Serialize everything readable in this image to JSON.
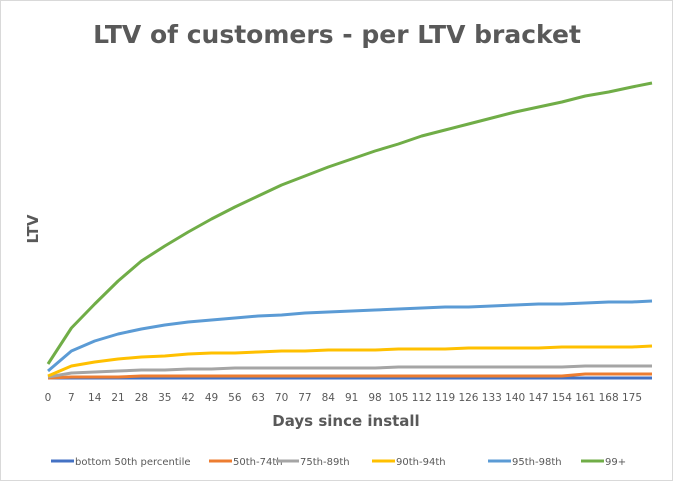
{
  "chart_data": {
    "type": "line",
    "title": "LTV of customers - per LTV bracket",
    "xlabel": "Days since install",
    "ylabel": "LTV",
    "y_tick_labels_shown": false,
    "ylim": [
      0,
      320
    ],
    "xlim": [
      0,
      181
    ],
    "grid": false,
    "legend_position": "bottom",
    "x_tick_labels": [
      "0",
      "7",
      "14",
      "21",
      "28",
      "35",
      "42",
      "49",
      "56",
      "63",
      "70",
      "77",
      "84",
      "91",
      "98",
      "105",
      "112",
      "119",
      "126",
      "133",
      "140",
      "147",
      "154",
      "161",
      "168",
      "175"
    ],
    "x": [
      0,
      7,
      14,
      21,
      28,
      35,
      42,
      49,
      56,
      63,
      70,
      77,
      84,
      91,
      98,
      105,
      112,
      119,
      126,
      133,
      140,
      147,
      154,
      161,
      168,
      175,
      181
    ],
    "series": [
      {
        "name": "bottom 50th percentile",
        "color": "#4472c4",
        "values": [
          1,
          1,
          1,
          1,
          1,
          1,
          1,
          1,
          1,
          1,
          1,
          1,
          1,
          1,
          1,
          1,
          1,
          1,
          1,
          1,
          1,
          1,
          1,
          1,
          1,
          1,
          1
        ]
      },
      {
        "name": "50th-74th",
        "color": "#ed7d31",
        "values": [
          1,
          2,
          2,
          2,
          3,
          3,
          3,
          3,
          3,
          3,
          3,
          3,
          3,
          3,
          3,
          3,
          3,
          3,
          3,
          3,
          3,
          3,
          3,
          5,
          5,
          5,
          5
        ]
      },
      {
        "name": "75th-89th",
        "color": "#a5a5a5",
        "values": [
          2,
          6,
          7,
          8,
          9,
          9,
          10,
          10,
          11,
          11,
          11,
          11,
          11,
          11,
          11,
          12,
          12,
          12,
          12,
          12,
          12,
          12,
          12,
          13,
          13,
          13,
          13
        ]
      },
      {
        "name": "90th-94th",
        "color": "#ffc000",
        "values": [
          3,
          13,
          17,
          20,
          22,
          23,
          25,
          26,
          26,
          27,
          28,
          28,
          29,
          29,
          29,
          30,
          30,
          30,
          31,
          31,
          31,
          31,
          32,
          32,
          32,
          32,
          33
        ]
      },
      {
        "name": "95th-98th",
        "color": "#5b9bd5",
        "values": [
          8,
          28,
          38,
          45,
          50,
          54,
          57,
          59,
          61,
          63,
          64,
          66,
          67,
          68,
          69,
          70,
          71,
          72,
          72,
          73,
          74,
          75,
          75,
          76,
          77,
          77,
          78
        ]
      },
      {
        "name": "99+",
        "color": "#70ad47",
        "values": [
          15,
          51,
          75,
          98,
          118,
          133,
          147,
          160,
          172,
          183,
          194,
          203,
          212,
          220,
          228,
          235,
          243,
          249,
          255,
          261,
          267,
          272,
          277,
          283,
          287,
          292,
          296
        ]
      }
    ]
  }
}
